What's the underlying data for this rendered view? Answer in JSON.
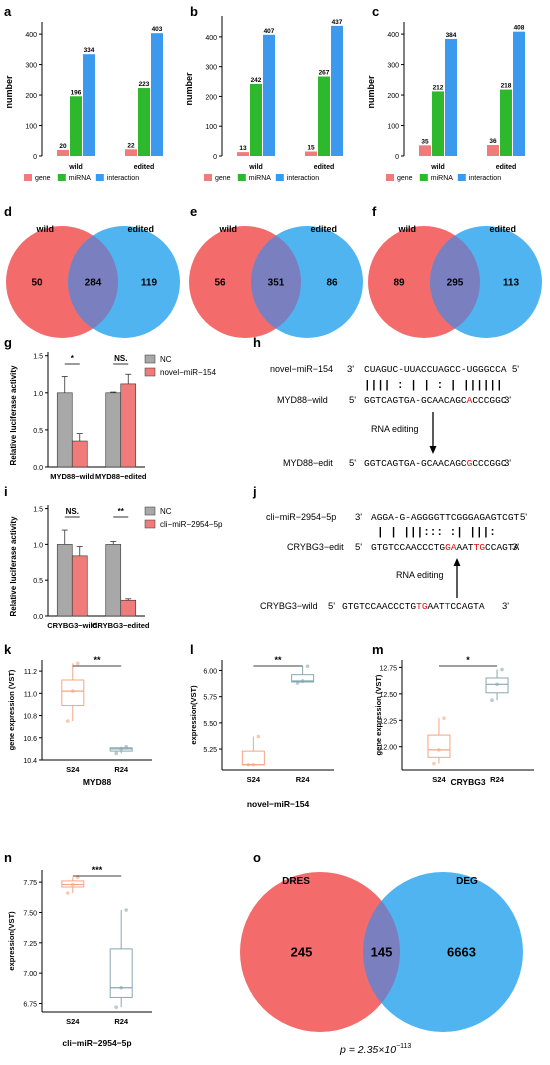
{
  "colors": {
    "gene": "#f07b7b",
    "mirna": "#2eb82e",
    "interaction": "#3b99ee",
    "venn_left": "#f36b6b",
    "venn_right": "#4fb4f0",
    "venn_overlap": "#7a7fbf",
    "nc": "#a8a8a8",
    "treat": "#f07b7b",
    "box_s24": "#f4a582",
    "box_r24": "#88a8b0",
    "edit_red": "#e01010"
  },
  "panel_labels": {
    "a": "a",
    "b": "b",
    "c": "c",
    "d": "d",
    "e": "e",
    "f": "f",
    "g": "g",
    "h": "h",
    "i": "i",
    "j": "j",
    "k": "k",
    "l": "l",
    "m": "m",
    "n": "n",
    "o": "o"
  },
  "bar_legend": {
    "gene": "gene",
    "mirna": "miRNA",
    "interaction": "interaction"
  },
  "chart_data": [
    {
      "id": "a",
      "type": "bar",
      "ylabel": "number",
      "categories": [
        "wild",
        "edited"
      ],
      "yticks": [
        0,
        100,
        200,
        300,
        400
      ],
      "ylim": [
        0,
        420
      ],
      "series": [
        {
          "name": "gene",
          "values": [
            20,
            22
          ]
        },
        {
          "name": "miRNA",
          "values": [
            196,
            223
          ]
        },
        {
          "name": "interaction",
          "values": [
            334,
            403
          ]
        }
      ]
    },
    {
      "id": "b",
      "type": "bar",
      "ylabel": "number",
      "categories": [
        "wild",
        "edited"
      ],
      "yticks": [
        0,
        100,
        200,
        300,
        400
      ],
      "ylim": [
        0,
        450
      ],
      "series": [
        {
          "name": "gene",
          "values": [
            13,
            15
          ]
        },
        {
          "name": "miRNA",
          "values": [
            242,
            267
          ]
        },
        {
          "name": "interaction",
          "values": [
            407,
            437
          ]
        }
      ]
    },
    {
      "id": "c",
      "type": "bar",
      "ylabel": "number",
      "categories": [
        "wild",
        "edited"
      ],
      "yticks": [
        0,
        100,
        200,
        300,
        400
      ],
      "ylim": [
        0,
        420
      ],
      "series": [
        {
          "name": "gene",
          "values": [
            35,
            36
          ]
        },
        {
          "name": "miRNA",
          "values": [
            212,
            218
          ]
        },
        {
          "name": "interaction",
          "values": [
            384,
            408
          ]
        }
      ]
    },
    {
      "id": "d",
      "type": "venn",
      "sets": [
        "wild",
        "edited"
      ],
      "values": [
        50,
        284,
        119
      ]
    },
    {
      "id": "e",
      "type": "venn",
      "sets": [
        "wild",
        "edited"
      ],
      "values": [
        56,
        351,
        86
      ]
    },
    {
      "id": "f",
      "type": "venn",
      "sets": [
        "wild",
        "edited"
      ],
      "values": [
        89,
        295,
        113
      ]
    },
    {
      "id": "g",
      "type": "bar",
      "ylabel": "Relative luciferase activity",
      "categories": [
        "MYD88-wild",
        "MYD88-edited"
      ],
      "yticks": [
        "0.0",
        "0.5",
        "1.0",
        "1.5"
      ],
      "ylim": [
        0,
        1.55
      ],
      "series": [
        {
          "name": "NC",
          "values": [
            1.0,
            1.0
          ],
          "err": [
            0.22,
            0.01
          ]
        },
        {
          "name": "novel-miR-154",
          "values": [
            0.35,
            1.12
          ],
          "err": [
            0.1,
            0.13
          ]
        }
      ],
      "significance": [
        "*",
        "NS."
      ]
    },
    {
      "id": "i",
      "type": "bar",
      "ylabel": "Relative luciferase activity",
      "categories": [
        "CRYBG3-wild",
        "CRYBG3-edited"
      ],
      "yticks": [
        "0.0",
        "0.5",
        "1.0",
        "1.5"
      ],
      "ylim": [
        0,
        1.55
      ],
      "series": [
        {
          "name": "NC",
          "values": [
            1.0,
            1.0
          ],
          "err": [
            0.2,
            0.04
          ]
        },
        {
          "name": "cli-miR-2954-5p",
          "values": [
            0.84,
            0.22
          ],
          "err": [
            0.13,
            0.02
          ]
        }
      ],
      "significance": [
        "NS.",
        "**"
      ]
    },
    {
      "id": "k",
      "type": "box",
      "ylabel": "gene expression (VST)",
      "xlabel": "MYD88",
      "categories": [
        "S24",
        "R24"
      ],
      "yticks": [
        "10.4",
        "10.6",
        "10.8",
        "11.0",
        "11.2"
      ],
      "ylim": [
        10.4,
        11.3
      ],
      "boxes": [
        {
          "min": 10.75,
          "q1": 10.89,
          "median": 11.02,
          "q3": 11.12,
          "max": 11.27
        },
        {
          "min": 10.46,
          "q1": 10.48,
          "median": 10.5,
          "q3": 10.51,
          "max": 10.52
        }
      ],
      "significance": "**"
    },
    {
      "id": "l",
      "type": "box",
      "ylabel": "expression(VST)",
      "xlabel": "novel-miR-154",
      "categories": [
        "S24",
        "R24"
      ],
      "yticks": [
        "5.25",
        "5.50",
        "5.75",
        "6.00"
      ],
      "ylim": [
        5.05,
        6.1
      ],
      "boxes": [
        {
          "min": 5.1,
          "q1": 5.1,
          "median": 5.1,
          "q3": 5.23,
          "max": 5.37
        },
        {
          "min": 5.88,
          "q1": 5.89,
          "median": 5.9,
          "q3": 5.96,
          "max": 6.04
        }
      ],
      "significance": "**"
    },
    {
      "id": "m",
      "type": "box",
      "ylabel": "gene expression (VST)",
      "xlabel": "CRYBG3",
      "categories": [
        "S24",
        "R24"
      ],
      "yticks": [
        "12.00",
        "12.25",
        "12.50",
        "12.75"
      ],
      "ylim": [
        11.78,
        12.82
      ],
      "boxes": [
        {
          "min": 11.84,
          "q1": 11.9,
          "median": 11.97,
          "q3": 12.11,
          "max": 12.27
        },
        {
          "min": 12.44,
          "q1": 12.51,
          "median": 12.59,
          "q3": 12.65,
          "max": 12.73
        }
      ],
      "significance": "*"
    },
    {
      "id": "n",
      "type": "box",
      "ylabel": "expression(VST)",
      "xlabel": "cli-miR-2954-5p",
      "categories": [
        "S24",
        "R24"
      ],
      "yticks": [
        "6.75",
        "7.00",
        "7.25",
        "7.50",
        "7.75"
      ],
      "ylim": [
        6.68,
        7.85
      ],
      "boxes": [
        {
          "min": 7.66,
          "q1": 7.71,
          "median": 7.73,
          "q3": 7.76,
          "max": 7.79
        },
        {
          "min": 6.72,
          "q1": 6.8,
          "median": 6.88,
          "q3": 7.2,
          "max": 7.52
        }
      ],
      "significance": "***"
    },
    {
      "id": "o",
      "type": "venn",
      "sets": [
        "DRES",
        "DEG"
      ],
      "values": [
        245,
        145,
        6663
      ],
      "p_value_text": "p = 2.35×10",
      "p_value_exp": "−113"
    }
  ],
  "legend_g": {
    "nc": "NC",
    "treat": "novel−miR−154"
  },
  "legend_i": {
    "nc": "NC",
    "treat": "cli−miR−2954−5p"
  },
  "seq_h": {
    "mirna_name": "novel−miR−154",
    "mirna_5p": "3'",
    "mirna_seq": "CUAGUC-UUACCUAGCC-UGGGCCA",
    "mirna_3p": "5'",
    "pairs": "||||  :  |  |  :  |  ||||||",
    "wild_name": "MYD88−wild",
    "wild_5p": "5'",
    "wild_seq_a": "GGTCAGTGA-GCAACAGC",
    "wild_seq_r": "A",
    "wild_seq_b": "CCCGGC",
    "wild_3p": "3'",
    "arrow_label": "RNA editing",
    "edit_name": "MYD88−edit",
    "edit_5p": "5'",
    "edit_seq_a": "GGTCAGTGA-GCAACAGC",
    "edit_seq_r": "G",
    "edit_seq_b": "CCCGGC",
    "edit_3p": "3'"
  },
  "seq_j": {
    "mirna_name": "cli−miR−2954−5p",
    "mirna_5p": "3'",
    "mirna_seq": "AGGA-G-AGGGGTTCGGGAGAGTCGT",
    "mirna_3p": "5'",
    "pairs": "|  |  |||:::  :|  |||:",
    "edit_name": "CRYBG3−edit",
    "edit_5p": "5'",
    "edit_seq_a": "GTGTCCAACCCTG",
    "edit_seq_r1": "GA",
    "edit_seq_b": "AAT",
    "edit_seq_r2": "T",
    "edit_seq_c": "G",
    "edit_seq_d": "CCAGTA",
    "edit_3p": "3'",
    "arrow_label": "RNA editing",
    "wild_name": "CRYBG3−wild",
    "wild_5p": "5'",
    "wild_seq_a": "GTGTCCAACCCTG",
    "wild_seq_r1": "TG",
    "wild_seq_b": "AAT",
    "wild_seq_r2": "T",
    "wild_seq_c": "C",
    "wild_seq_d": "CAGTA",
    "wild_3p": "3'"
  }
}
